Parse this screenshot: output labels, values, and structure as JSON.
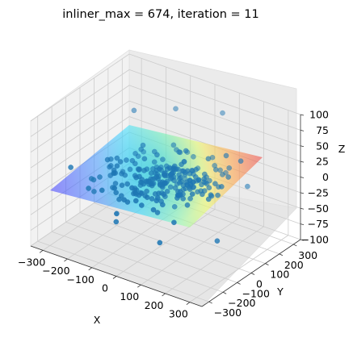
{
  "chart_data": {
    "type": "scatter3d",
    "title": "inliner_max = 674, iteration = 11",
    "xlabel": "X",
    "ylabel": "Y",
    "zlabel": "Z",
    "xlim": [
      -350,
      350
    ],
    "ylim": [
      -350,
      350
    ],
    "zlim": [
      -100,
      100
    ],
    "xticks": [
      -300,
      -200,
      -100,
      0,
      100,
      200,
      300
    ],
    "yticks": [
      -300,
      -200,
      -100,
      0,
      100,
      200,
      300
    ],
    "zticks": [
      -100,
      -75,
      -50,
      -25,
      0,
      25,
      50,
      75,
      100
    ],
    "xtick_labels": [
      "−300",
      "−200",
      "−100",
      "0",
      "100",
      "200",
      "300"
    ],
    "ytick_labels": [
      "−300",
      "−200",
      "−100",
      "0",
      "100",
      "200",
      "300"
    ],
    "ztick_labels": [
      "−100",
      "−75",
      "−50",
      "−25",
      "0",
      "25",
      "50",
      "75",
      "100"
    ],
    "grid": true,
    "surface_colormap": "jet",
    "surface_alpha": 0.5,
    "point_color": "#1f77b4",
    "point_count": 674,
    "sample_points": [
      [
        -250,
        210,
        45
      ],
      [
        -120,
        280,
        55
      ],
      [
        60,
        300,
        70
      ],
      [
        -280,
        -40,
        -30
      ],
      [
        250,
        100,
        50
      ],
      [
        120,
        -250,
        -45
      ],
      [
        280,
        -120,
        -40
      ],
      [
        -200,
        -200,
        -10
      ],
      [
        50,
        50,
        8
      ],
      [
        -60,
        -30,
        -5
      ],
      [
        140,
        30,
        12
      ],
      [
        -150,
        100,
        20
      ]
    ]
  }
}
